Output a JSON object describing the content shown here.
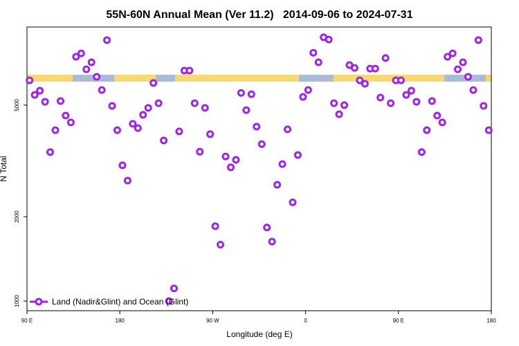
{
  "chart_data": {
    "type": "scatter",
    "title": "55N-60N Annual Mean (Ver 11.2)   2014-09-06 to 2024-07-31",
    "x_label": "Longitude (deg E)",
    "y_label": "N Total",
    "xlim": [
      90,
      540
    ],
    "ylim": [
      924,
      9500
    ],
    "log_y": true,
    "xticks": [
      {
        "value": 90,
        "label": "90 E"
      },
      180,
      {
        "value": 270,
        "label": "90 W"
      },
      {
        "value": 360,
        "label": "0"
      },
      {
        "value": 450,
        "label": "90 E"
      },
      {
        "value": 540,
        "label": "180"
      }
    ],
    "yticks": [
      1000,
      2000,
      5000
    ],
    "legend_position": "lower left",
    "series": [
      {
        "name": "Land (Nadir&Glint) and Ocean (Glint)",
        "color": "#a020f0",
        "x": [
          92.5,
          97.5,
          102.5,
          107.5,
          112.5,
          117.5,
          122.5,
          127.5,
          132.5,
          137.5,
          142.5,
          147.5,
          152.5,
          157.5,
          162.5,
          167.5,
          172.5,
          177.5,
          182.5,
          187.5,
          192.5,
          197.5,
          202.5,
          207.5,
          212.5,
          217.5,
          222.5,
          227.5,
          232.5,
          237.5,
          242.5,
          247.5,
          252.5,
          257.5,
          262.5,
          267.5,
          272.5,
          277.5,
          282.5,
          287.5,
          292.5,
          297.5,
          302.5,
          307.5,
          312.5,
          317.5,
          322.5,
          327.5,
          332.5,
          337.5,
          342.5,
          347.5,
          352.5,
          357.5,
          362.5,
          367.5,
          372.5,
          377.5,
          382.5,
          387.5,
          392.5,
          397.5,
          402.5,
          407.5,
          412.5,
          417.5,
          422.5,
          427.5,
          432.5,
          437.5,
          442.5,
          447.5,
          452.5,
          457.5,
          462.5,
          467.5,
          472.5,
          477.5,
          482.5,
          487.5,
          492.5,
          497.5,
          502.5,
          507.5,
          512.5,
          517.5,
          522.5,
          527.5,
          532.5,
          537.5
        ],
        "values": [
          6130,
          5440,
          5630,
          5140,
          3400,
          4070,
          5170,
          4590,
          4340,
          7440,
          7650,
          6710,
          7110,
          6310,
          5660,
          8530,
          4970,
          4070,
          3050,
          2690,
          4290,
          4140,
          4620,
          4890,
          6000,
          5080,
          3740,
          1000,
          1110,
          4030,
          6640,
          6640,
          5080,
          3410,
          4890,
          3940,
          1850,
          1590,
          3280,
          3000,
          3190,
          5530,
          4800,
          5470,
          4190,
          3630,
          1830,
          1630,
          2600,
          3080,
          4100,
          2250,
          3320,
          5350,
          5660,
          7690,
          7110,
          8730,
          8570,
          5080,
          4640,
          5000,
          6950,
          6790,
          6130,
          5960,
          6750,
          6750,
          5320,
          7360,
          5080,
          6130,
          6130,
          5440,
          5630,
          5140,
          3400,
          4070,
          5170,
          4590,
          4340,
          7440,
          7650,
          6710,
          7110,
          6310,
          5660,
          8530,
          4970,
          4070
        ]
      }
    ]
  }
}
